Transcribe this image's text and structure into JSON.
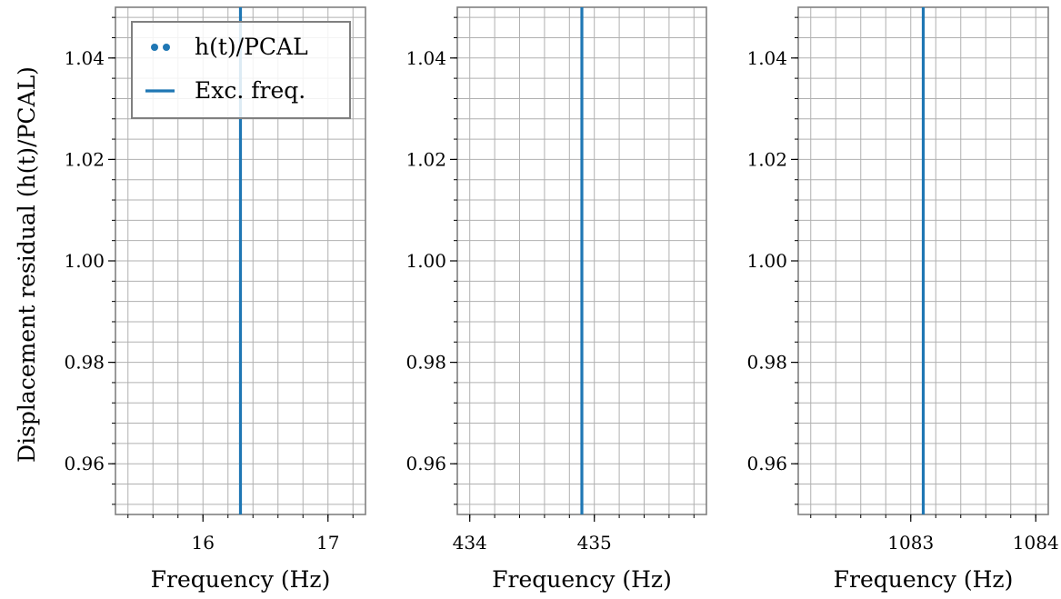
{
  "chart_data": [
    {
      "type": "line",
      "xlabel": "Frequency (Hz)",
      "ylabel": "Displacement residual (h(t)/PCAL)",
      "xlim": [
        15.3,
        17.3
      ],
      "ylim": [
        0.95,
        1.05
      ],
      "xticks": [
        16,
        17
      ],
      "xtick_labels": [
        "16",
        "17"
      ],
      "yticks": [
        0.96,
        0.98,
        1.0,
        1.02,
        1.04
      ],
      "ytick_labels": [
        "0.96",
        "0.98",
        "1.00",
        "1.02",
        "1.04"
      ],
      "grid": true,
      "series": [
        {
          "name": "h(t)/PCAL",
          "kind": "scatter",
          "color": "#1f77b4",
          "x": [],
          "y": []
        },
        {
          "name": "Exc. freq.",
          "kind": "vline",
          "color": "#1f77b4",
          "x": 16.3
        }
      ],
      "legend": {
        "placement": "top-right",
        "entries": [
          "h(t)/PCAL",
          "Exc. freq."
        ]
      }
    },
    {
      "type": "line",
      "xlabel": "Frequency (Hz)",
      "ylabel": "",
      "xlim": [
        433.9,
        435.9
      ],
      "ylim": [
        0.95,
        1.05
      ],
      "xticks": [
        434,
        435
      ],
      "xtick_labels": [
        "434",
        "435"
      ],
      "yticks": [
        0.96,
        0.98,
        1.0,
        1.02,
        1.04
      ],
      "ytick_labels": [
        "0.96",
        "0.98",
        "1.00",
        "1.02",
        "1.04"
      ],
      "grid": true,
      "series": [
        {
          "name": "Exc. freq.",
          "kind": "vline",
          "color": "#1f77b4",
          "x": 434.9
        }
      ]
    },
    {
      "type": "line",
      "xlabel": "Frequency (Hz)",
      "ylabel": "",
      "xlim": [
        1082.1,
        1084.1
      ],
      "ylim": [
        0.95,
        1.05
      ],
      "xticks": [
        1083,
        1084
      ],
      "xtick_labels": [
        "1083",
        "1084"
      ],
      "yticks": [
        0.96,
        0.98,
        1.0,
        1.02,
        1.04
      ],
      "ytick_labels": [
        "0.96",
        "0.98",
        "1.00",
        "1.02",
        "1.04"
      ],
      "grid": true,
      "series": [
        {
          "name": "Exc. freq.",
          "kind": "vline",
          "color": "#1f77b4",
          "x": 1083.1
        }
      ]
    }
  ],
  "colors": {
    "series": "#1f77b4",
    "grid": "#b0b0b0",
    "frame": "#808080"
  }
}
